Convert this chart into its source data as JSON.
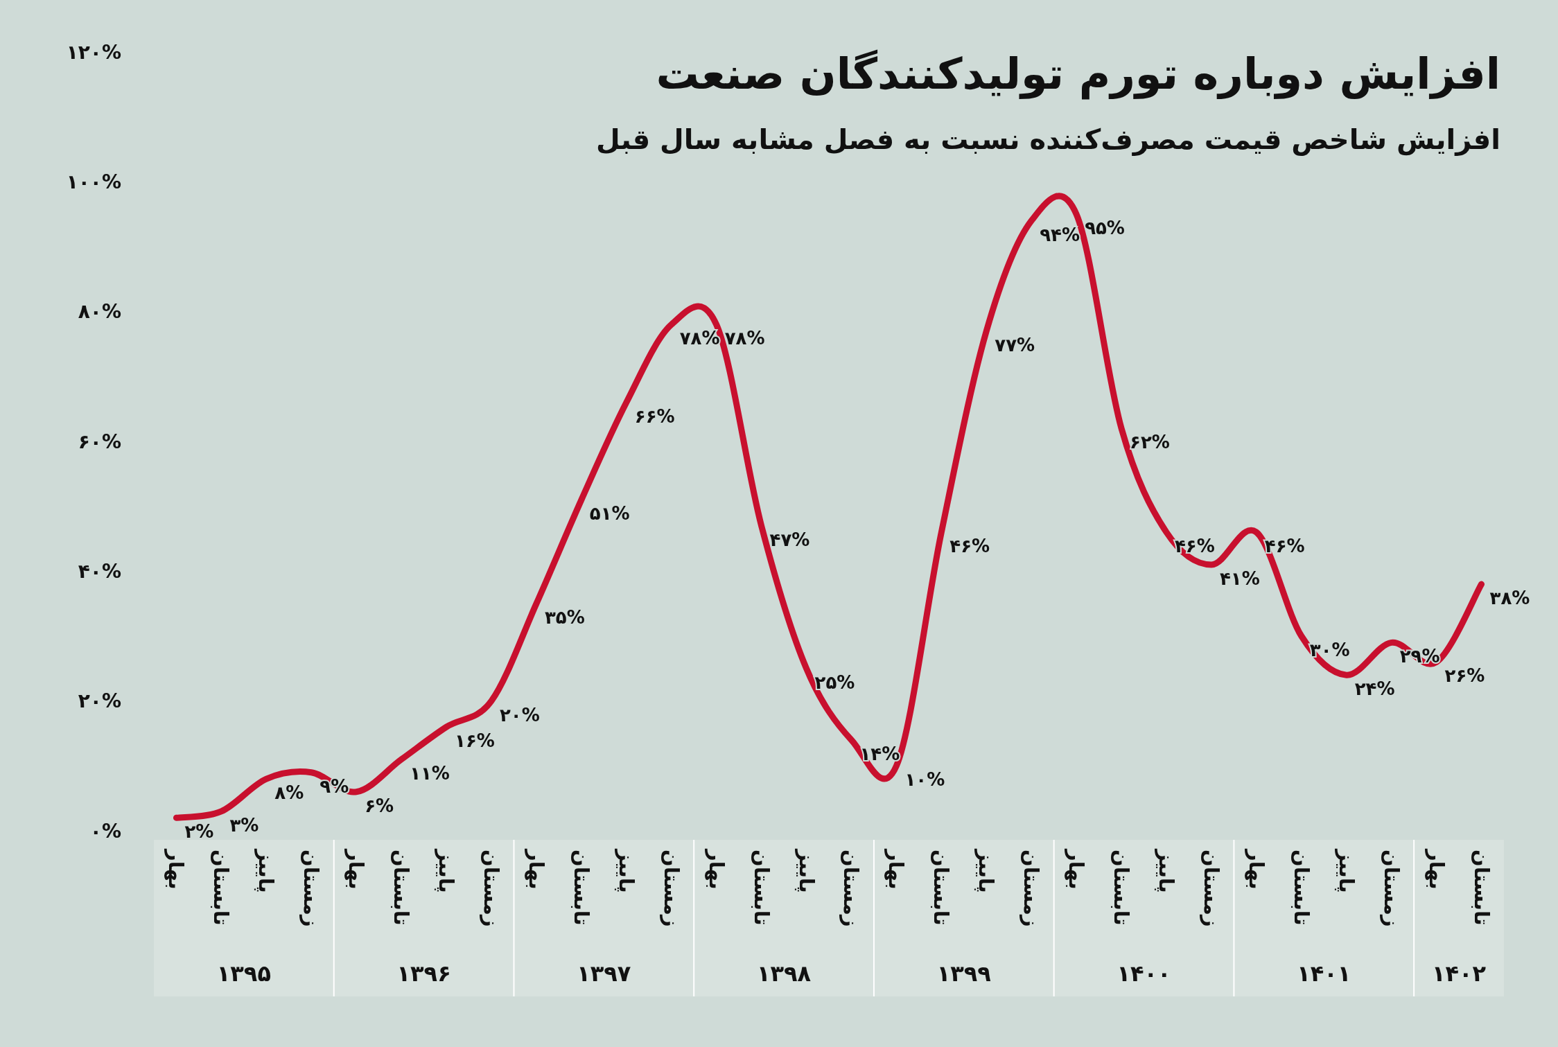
{
  "chart_data": {
    "type": "line",
    "title": "افزایش دوباره تورم تولیدکنندگان صنعت",
    "subtitle": "افزایش شاخص قیمت مصرف‌کننده نسبت به فصل مشابه سال قبل",
    "categories": [
      "بهار",
      "تابستان",
      "پاییز",
      "زمستان",
      "بهار",
      "تابستان",
      "پاییز",
      "زمستان",
      "بهار",
      "تابستان",
      "پاییز",
      "زمستان",
      "بهار",
      "تابستان",
      "پاییز",
      "زمستان",
      "بهار",
      "تابستان",
      "پاییز",
      "زمستان",
      "بهار",
      "تابستان",
      "پاییز",
      "زمستان",
      "بهار",
      "تابستان",
      "پاییز",
      "زمستان",
      "بهار",
      "تابستان"
    ],
    "values": [
      2,
      3,
      8,
      9,
      6,
      11,
      16,
      20,
      35,
      51,
      66,
      78,
      78,
      47,
      25,
      14,
      10,
      46,
      77,
      94,
      95,
      62,
      46,
      41,
      46,
      30,
      24,
      29,
      26,
      38
    ],
    "value_labels": [
      "۲%",
      "۳%",
      "۸%",
      "۹%",
      "۶%",
      "۱۱%",
      "۱۶%",
      "۲۰%",
      "۳۵%",
      "۵۱%",
      "۶۶%",
      "۷۸%",
      "۷۸%",
      "۴۷%",
      "۲۵%",
      "۱۴%",
      "۱۰%",
      "۴۶%",
      "۷۷%",
      "۹۴%",
      "۹۵%",
      "۶۲%",
      "۴۶%",
      "۴۱%",
      "۴۶%",
      "۳۰%",
      "۲۴%",
      "۲۹%",
      "۲۶%",
      "۳۸%"
    ],
    "color": "#c8102e",
    "ylim": [
      0,
      120
    ],
    "yticks": [
      {
        "value": 0,
        "label": "۰%"
      },
      {
        "value": 20,
        "label": "۲۰%"
      },
      {
        "value": 40,
        "label": "۴۰%"
      },
      {
        "value": 60,
        "label": "۶۰%"
      },
      {
        "value": 80,
        "label": "۸۰%"
      },
      {
        "value": 100,
        "label": "۱۰۰%"
      },
      {
        "value": 120,
        "label": "۱۲۰%"
      }
    ],
    "grid": false,
    "marker": "none",
    "line_style": "solid",
    "annotations": [
      "۱۳۹۵",
      "۱۳۹۶",
      "۱۳۹۷",
      "۱۳۹۸",
      "۱۳۹۹",
      "۱۴۰۰",
      "۱۴۰۱",
      "۱۴۰۲"
    ]
  }
}
